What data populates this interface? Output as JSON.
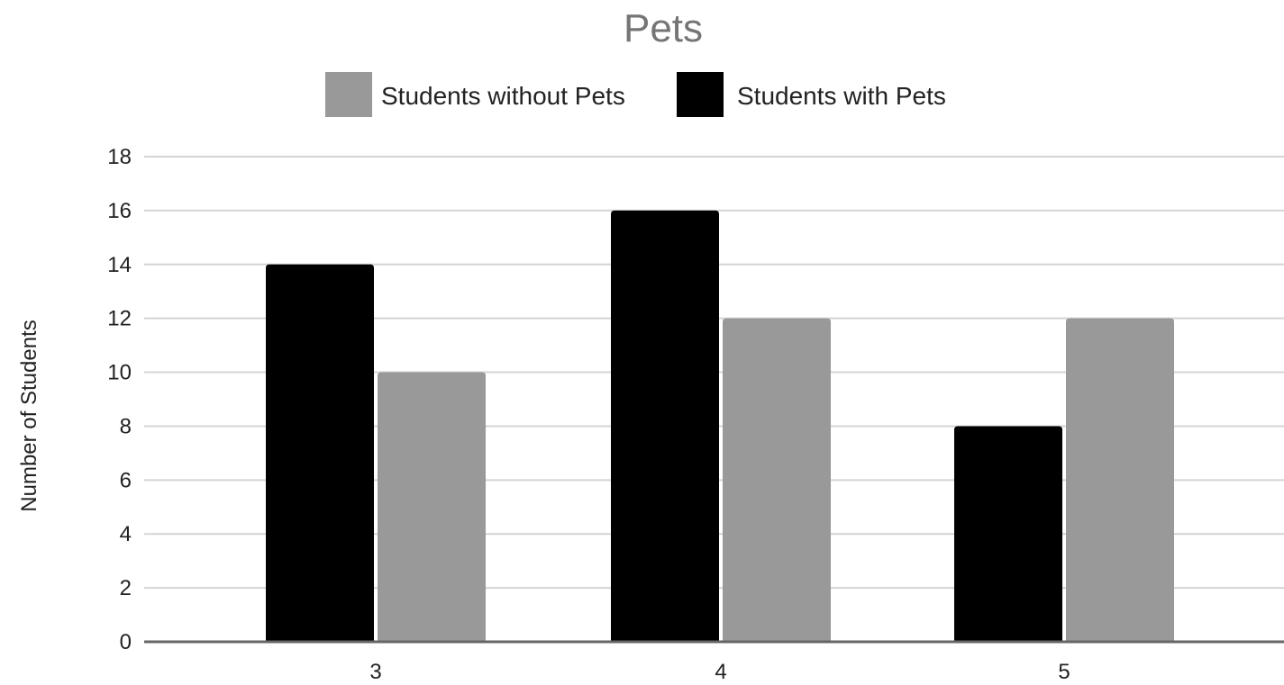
{
  "chart_data": {
    "type": "bar",
    "title": "Pets",
    "xlabel": "",
    "ylabel": "Number of Students",
    "categories": [
      "3",
      "4",
      "5"
    ],
    "series": [
      {
        "name": "Students with Pets",
        "values": [
          14,
          16,
          8
        ],
        "color": "#000000"
      },
      {
        "name": "Students without Pets",
        "values": [
          10,
          12,
          12
        ],
        "color": "#999999"
      }
    ],
    "legend": {
      "position": "top",
      "order": [
        "Students without Pets",
        "Students with Pets"
      ]
    },
    "ylim": [
      0,
      18
    ],
    "yticks": [
      0,
      2,
      4,
      6,
      8,
      10,
      12,
      14,
      16,
      18
    ],
    "grid": true
  }
}
